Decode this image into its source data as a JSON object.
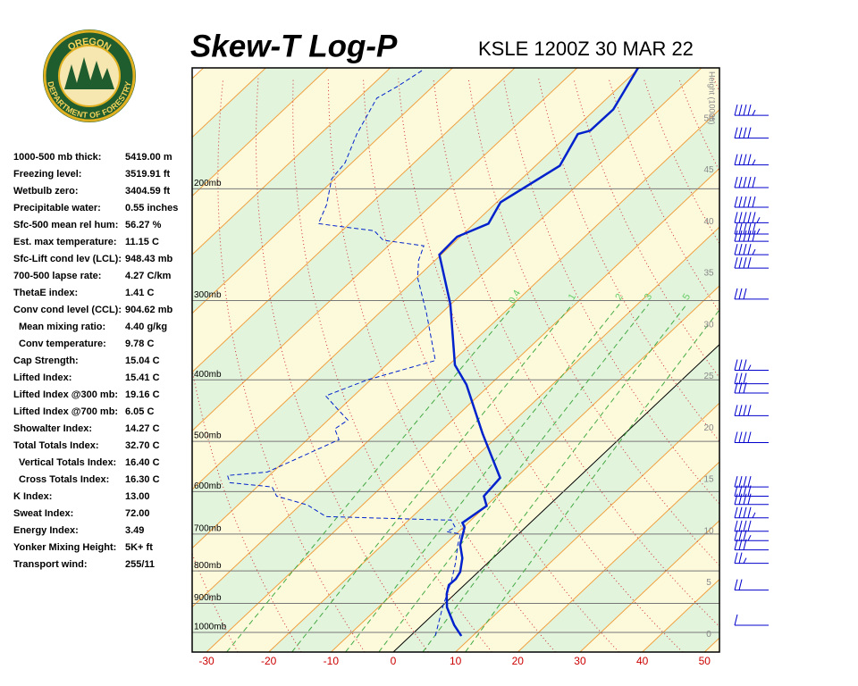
{
  "logo": {
    "top": "OREGON",
    "bottom": "DEPARTMENT OF FORESTRY"
  },
  "title": "Skew-T Log-P",
  "station": "KSLE 1200Z 30 MAR 22",
  "indices": [
    {
      "label": "1000-500 mb thick:",
      "value": "5419.00 m"
    },
    {
      "label": "Freezing level:",
      "value": "3519.91 ft"
    },
    {
      "label": "Wetbulb zero:",
      "value": "3404.59 ft"
    },
    {
      "label": "Precipitable water:",
      "value": "0.55 inches"
    },
    {
      "label": "Sfc-500 mean rel hum:",
      "value": "56.27 %"
    },
    {
      "label": "Est. max temperature:",
      "value": "11.15 C"
    },
    {
      "label": "Sfc-Lift cond lev (LCL):",
      "value": "948.43 mb"
    },
    {
      "label": "700-500 lapse rate:",
      "value": "4.27 C/km"
    },
    {
      "label": "ThetaE index:",
      "value": "1.41 C"
    },
    {
      "label": "Conv cond level (CCL):",
      "value": "904.62 mb"
    },
    {
      "label": "Mean mixing ratio:",
      "value": "4.40 g/kg"
    },
    {
      "label": "Conv temperature:",
      "value": "9.78 C"
    },
    {
      "label": "Cap Strength:",
      "value": "15.04 C"
    },
    {
      "label": "Lifted Index:",
      "value": "15.41 C"
    },
    {
      "label": "Lifted Index @300 mb:",
      "value": "19.16 C"
    },
    {
      "label": "Lifted Index @700 mb:",
      "value": "6.05 C"
    },
    {
      "label": "Showalter Index:",
      "value": "14.27 C"
    },
    {
      "label": "Total Totals Index:",
      "value": "32.70 C"
    },
    {
      "label": "Vertical Totals Index:",
      "value": "16.40 C"
    },
    {
      "label": "Cross Totals Index:",
      "value": "16.30 C"
    },
    {
      "label": "K Index:",
      "value": "13.00"
    },
    {
      "label": "Sweat Index:",
      "value": "72.00"
    },
    {
      "label": "Energy Index:",
      "value": "3.49"
    },
    {
      "label": "Yonker Mixing Height:",
      "value": "5K+ ft"
    },
    {
      "label": "Transport wind:",
      "value": "255/11"
    }
  ],
  "chart_data": {
    "type": "skew-t",
    "ylim": [
      1074,
      129
    ],
    "log_y": true,
    "yticks": [
      {
        "value": 1000,
        "label": "1000mb"
      },
      {
        "value": 900,
        "label": "900mb"
      },
      {
        "value": 800,
        "label": "800mb"
      },
      {
        "value": 700,
        "label": "700mb"
      },
      {
        "value": 600,
        "label": "600mb"
      },
      {
        "value": 500,
        "label": "500mb"
      },
      {
        "value": 400,
        "label": "400mb"
      },
      {
        "value": 300,
        "label": "300mb"
      },
      {
        "value": 200,
        "label": "200mb"
      }
    ],
    "xlim": [
      -32.3,
      52.4
    ],
    "xticks": [
      -30,
      -20,
      -10,
      0,
      10,
      20,
      30,
      40,
      50
    ],
    "y2label": "Height (1000ft)",
    "y2lim": [
      -1.7,
      54.9
    ],
    "y2ticks": [
      0,
      5,
      10,
      15,
      20,
      25,
      30,
      35,
      40,
      45,
      50
    ],
    "mixing_ratio_lines": [
      0.4,
      1,
      2,
      3,
      5,
      8
    ],
    "series": [
      {
        "color": "#0022cc",
        "line_style": "solid",
        "pressure": [
          1013,
          974,
          913,
          870,
          842,
          824,
          803,
          764,
          728,
          683,
          672,
          632,
          610,
          571,
          486,
          407,
          379,
          304,
          254,
          238,
          227,
          210,
          184,
          164,
          162,
          150,
          129
        ],
        "values": [
          8.2,
          5.2,
          1.0,
          -1.3,
          -2.5,
          -2.4,
          -2.9,
          -4.9,
          -7.5,
          -9.8,
          -10.9,
          -9.9,
          -12.0,
          -12.5,
          -22.9,
          -33.8,
          -39.0,
          -50.1,
          -60.3,
          -60.5,
          -57.7,
          -59.4,
          -56.1,
          -58.6,
          -57.2,
          -57.1,
          -60.2
        ]
      },
      {
        "color": "#0022cc",
        "line_style": "dashed",
        "pressure": [
          1013,
          913,
          829,
          777,
          728,
          700,
          694,
          683,
          665,
          665,
          657,
          630,
          610,
          590,
          581,
          566,
          559,
          497,
          478,
          463,
          445,
          424,
          400,
          373,
          314,
          276,
          259,
          246,
          241,
          233,
          227,
          212,
          193,
          182,
          164,
          144,
          138,
          130
        ],
        "values": [
          4.0,
          0.3,
          -2.8,
          -5.2,
          -7.9,
          -9.3,
          -11.9,
          -11.3,
          -13.2,
          -14.6,
          -33.9,
          -38.8,
          -45.3,
          -47.6,
          -55.1,
          -56.7,
          -50.9,
          -44.9,
          -47.4,
          -46.8,
          -50.3,
          -54.5,
          -50.5,
          -42.9,
          -52.4,
          -59.9,
          -62.7,
          -64.3,
          -71.8,
          -74.8,
          -85.0,
          -86.9,
          -90.5,
          -91.1,
          -94.1,
          -97.0,
          -95.7,
          -94.4
        ]
      }
    ],
    "winds": {
      "height": [
        50.3,
        48.1,
        45.5,
        43.3,
        41.4,
        39.9,
        38.8,
        38.1,
        36.8,
        35.5,
        32.5,
        25.6,
        24.3,
        23.4,
        21.2,
        18.6,
        14.3,
        13.4,
        12.6,
        11.3,
        10.0,
        9.1,
        8.2,
        6.9,
        4.3,
        0.9
      ],
      "speed": [
        45,
        40,
        45,
        50,
        50,
        55,
        55,
        50,
        45,
        40,
        30,
        35,
        30,
        30,
        40,
        40,
        40,
        40,
        40,
        45,
        40,
        35,
        30,
        25,
        20,
        10
      ]
    }
  }
}
